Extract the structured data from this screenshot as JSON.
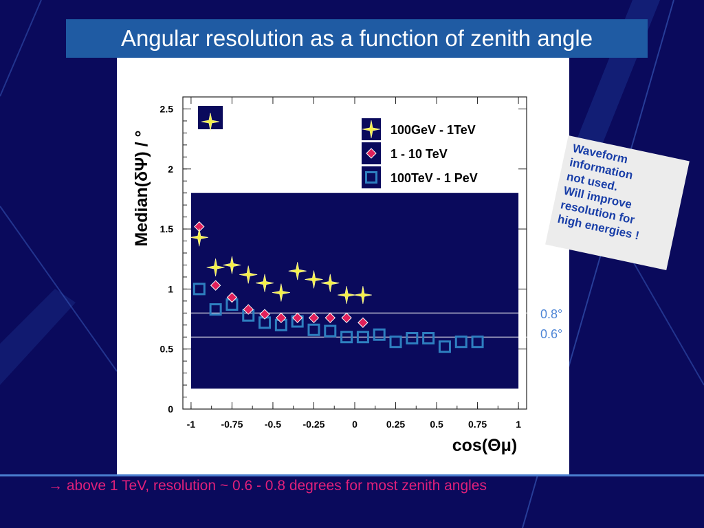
{
  "slide": {
    "title": "Angular resolution as a function of zenith angle",
    "footer_arrow": "→",
    "footer_text": "above 1 TeV, resolution ~ 0.6 - 0.8 degrees for most zenith angles",
    "note_lines": [
      "Waveform",
      "information",
      "not used.",
      "Will improve",
      "resolution for",
      "high energies !"
    ],
    "ref_labels": [
      "0.8°",
      "0.6°"
    ],
    "colors": {
      "background": "#0a0a5c",
      "title_bar": "#1f5ba3",
      "note_text": "#1a3fa8",
      "footer_text": "#e0207a",
      "ref_label": "#4f86d6"
    }
  },
  "chart_data": {
    "type": "scatter",
    "title": "",
    "xlabel": "cos(Θμ)",
    "ylabel": "Median(δΨ) / °",
    "xlim": [
      -1.05,
      1.05
    ],
    "ylim": [
      0,
      2.6
    ],
    "xticks": [
      "-1",
      "-0.75",
      "-0.5",
      "-0.25",
      "0",
      "0.25",
      "0.5",
      "0.75",
      "1"
    ],
    "xtick_values": [
      -1,
      -0.75,
      -0.5,
      -0.25,
      0,
      0.25,
      0.5,
      0.75,
      1
    ],
    "yticks": [
      "0",
      "0.5",
      "1",
      "1.5",
      "2",
      "2.5"
    ],
    "ytick_values": [
      0,
      0.5,
      1,
      1.5,
      2,
      2.5
    ],
    "reference_lines": [
      0.8,
      0.6
    ],
    "highlight_region": {
      "x": [
        -1,
        1
      ],
      "y": [
        0.17,
        1.8
      ],
      "color": "#0a0a5c"
    },
    "legend_position": "top-right",
    "series": [
      {
        "name": "100GeV - 1TeV",
        "marker": "star",
        "color": "#f5f04a",
        "x": [
          -0.95,
          -0.85,
          -0.75,
          -0.65,
          -0.55,
          -0.45,
          -0.35,
          -0.25,
          -0.15,
          -0.05,
          0.05
        ],
        "y": [
          1.43,
          1.18,
          1.2,
          1.12,
          1.05,
          0.97,
          1.15,
          1.08,
          1.05,
          0.95,
          0.95
        ]
      },
      {
        "name": "1 - 10 TeV",
        "marker": "diamond",
        "color": "#e0205a",
        "x": [
          -0.95,
          -0.85,
          -0.75,
          -0.65,
          -0.55,
          -0.45,
          -0.35,
          -0.25,
          -0.15,
          -0.05,
          0.05
        ],
        "y": [
          1.52,
          1.03,
          0.93,
          0.83,
          0.79,
          0.76,
          0.76,
          0.76,
          0.76,
          0.76,
          0.72
        ]
      },
      {
        "name": "100TeV - 1 PeV",
        "marker": "square",
        "color": "#2e7fc0",
        "x": [
          -0.95,
          -0.85,
          -0.75,
          -0.65,
          -0.55,
          -0.45,
          -0.35,
          -0.25,
          -0.15,
          -0.05,
          0.05,
          0.15,
          0.25,
          0.35,
          0.45,
          0.55,
          0.65,
          0.75
        ],
        "y": [
          1.0,
          0.83,
          0.87,
          0.78,
          0.72,
          0.7,
          0.73,
          0.66,
          0.65,
          0.6,
          0.6,
          0.62,
          0.56,
          0.59,
          0.59,
          0.52,
          0.56,
          0.56
        ]
      }
    ],
    "corner_marker": {
      "marker": "star",
      "color": "#f5f04a"
    }
  }
}
